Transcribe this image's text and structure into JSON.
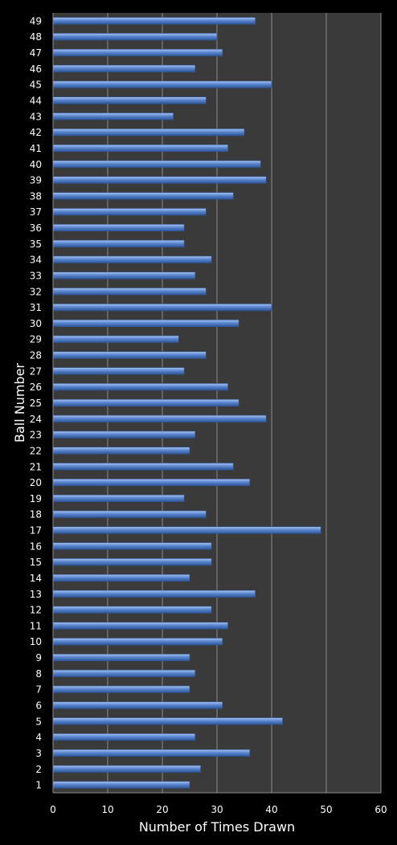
{
  "chart_data": {
    "type": "bar",
    "orientation": "horizontal",
    "xlabel": "Number of Times Drawn",
    "ylabel": "Ball Number",
    "xlim": [
      0,
      60
    ],
    "x_ticks": [
      "0",
      "10",
      "20",
      "30",
      "40",
      "50",
      "60"
    ],
    "grid": "vertical",
    "categories": [
      "1",
      "2",
      "3",
      "4",
      "5",
      "6",
      "7",
      "8",
      "9",
      "10",
      "11",
      "12",
      "13",
      "14",
      "15",
      "16",
      "17",
      "18",
      "19",
      "20",
      "21",
      "22",
      "23",
      "24",
      "25",
      "26",
      "27",
      "28",
      "29",
      "30",
      "31",
      "32",
      "33",
      "34",
      "35",
      "36",
      "37",
      "38",
      "39",
      "40",
      "41",
      "42",
      "43",
      "44",
      "45",
      "46",
      "47",
      "48",
      "49"
    ],
    "values": [
      25,
      27,
      36,
      26,
      42,
      31,
      25,
      26,
      25,
      31,
      32,
      29,
      37,
      25,
      29,
      29,
      49,
      28,
      24,
      36,
      33,
      25,
      26,
      39,
      34,
      32,
      24,
      28,
      23,
      34,
      40,
      28,
      26,
      29,
      24,
      24,
      28,
      33,
      39,
      38,
      32,
      35,
      22,
      28,
      40,
      26,
      31,
      30,
      37
    ],
    "colors": {
      "background": "#000000",
      "plot_area": "#3a3a3a",
      "grid": "#8c8c8c",
      "bar": "#5b87d0",
      "bar_highlight": "#a9c4ef",
      "bar_shadow": "#2f5597",
      "text": "#ffffff"
    }
  }
}
